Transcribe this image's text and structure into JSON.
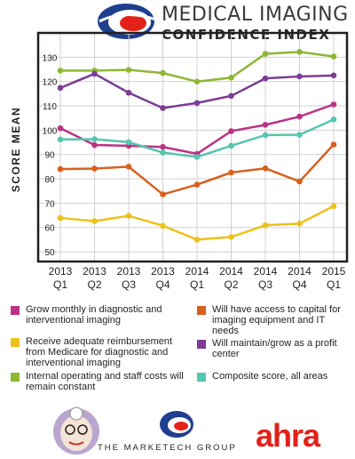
{
  "header": {
    "title_line1": "MEDICAL IMAGING",
    "title_line2": "CONFIDENCE INDEX"
  },
  "chart_data": {
    "type": "line",
    "ylabel": "SCORE MEAN",
    "xlabel": "",
    "ylim": [
      46,
      140
    ],
    "yticks": [
      50,
      60,
      70,
      80,
      90,
      100,
      110,
      120,
      130
    ],
    "categories": [
      [
        "2013",
        "Q1"
      ],
      [
        "2013",
        "Q2"
      ],
      [
        "2013",
        "Q3"
      ],
      [
        "2013",
        "Q4"
      ],
      [
        "2014",
        "Q1"
      ],
      [
        "2014",
        "Q2"
      ],
      [
        "2014",
        "Q3"
      ],
      [
        "2014",
        "Q4"
      ],
      [
        "2015",
        "Q1"
      ]
    ],
    "grid": true,
    "series": [
      {
        "name": "Internal operating and staff costs will remain constant",
        "color": "#8db833",
        "values": [
          124.5,
          124.5,
          124.8,
          123.5,
          120,
          121.6,
          131.4,
          132.2,
          130.3
        ]
      },
      {
        "name": "Will maintain/grow as a profit center",
        "color": "#7b3c96",
        "values": [
          117.4,
          123.2,
          115.4,
          109.1,
          111.2,
          114.1,
          121.3,
          122.1,
          122.5
        ]
      },
      {
        "name": "Grow monthly in diagnostic and interventional imaging",
        "color": "#bb3286",
        "values": [
          100.8,
          93.9,
          93.6,
          93.1,
          90.3,
          99.6,
          102.2,
          105.6,
          110.6
        ]
      },
      {
        "name": "Composite score, all areas",
        "color": "#56c6b0",
        "values": [
          96.2,
          96.3,
          95.1,
          90.8,
          89,
          93.6,
          98,
          98.1,
          104.4
        ]
      },
      {
        "name": "Will have access to capital for imaging equipment and IT needs",
        "color": "#d95f1e",
        "values": [
          84,
          84.2,
          85,
          73.6,
          77.6,
          82.6,
          84.3,
          78.9,
          94.1
        ]
      },
      {
        "name": "Receive adequate reimbursement from Medicare for diagnostic and interventional imaging",
        "color": "#ecc21a",
        "values": [
          63.9,
          62.6,
          64.8,
          60.7,
          55,
          56.1,
          60.9,
          61.6,
          68.8
        ]
      }
    ]
  },
  "legend": [
    {
      "label": "Grow monthly in diagnostic and interventional imaging",
      "color": "#bb3286"
    },
    {
      "label": "Will have access to capital for imaging equipment and IT needs",
      "color": "#d95f1e"
    },
    {
      "label": "Receive adequate reimbursement from Medicare for diagnostic and interventional imaging",
      "color": "#ecc21a"
    },
    {
      "label": "Will maintain/grow as a profit center",
      "color": "#7b3c96"
    },
    {
      "label": "Internal operating and staff costs will remain constant",
      "color": "#8db833"
    },
    {
      "label": "Composite score, all areas",
      "color": "#56c6b0"
    }
  ],
  "logos": {
    "marketech": "THE MARKETECH GROUP",
    "ahra": "ahra"
  },
  "colors": {
    "accent_blue": "#1f3f8f",
    "accent_red": "#e32119",
    "frame": "#231f20"
  }
}
